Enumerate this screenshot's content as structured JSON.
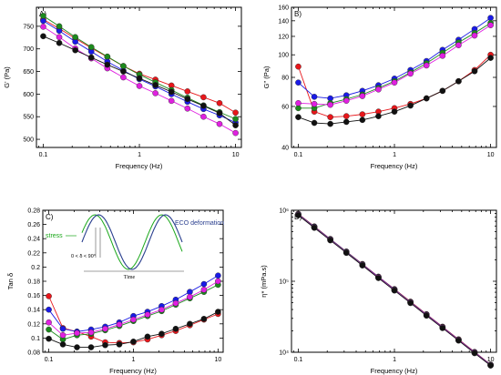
{
  "chart_data": [
    {
      "panel": "A)",
      "type": "line",
      "xscale": "log",
      "xlim": [
        0.085,
        11.5
      ],
      "ylim": [
        482,
        792
      ],
      "xlabel": "Frequency (Hz)",
      "ylabel": "G' (Pa)",
      "xticks": [
        0.1,
        1,
        10
      ],
      "xtick_labels": [
        "0.1",
        "1",
        "10"
      ],
      "yticks": [
        500,
        550,
        600,
        650,
        700,
        750
      ],
      "ytick_labels": [
        "500",
        "550",
        "600",
        "650",
        "700",
        "750"
      ],
      "x": [
        0.1,
        0.1468,
        0.2154,
        0.3162,
        0.4642,
        0.6813,
        1.0,
        1.4678,
        2.1544,
        3.1623,
        4.6416,
        6.8129,
        10.0
      ],
      "series": [
        {
          "color": "#e8161b",
          "values": [
            765,
            745,
            723,
            702,
            682,
            662,
            645,
            632,
            619,
            606,
            593,
            580,
            559
          ]
        },
        {
          "color": "#1a1ae6",
          "values": [
            762,
            740,
            716,
            694,
            672,
            652,
            633,
            617,
            600,
            583,
            567,
            553,
            537
          ]
        },
        {
          "color": "#1d8a1d",
          "values": [
            773,
            750,
            726,
            704,
            683,
            662,
            643,
            626,
            609,
            592,
            575,
            560,
            545
          ]
        },
        {
          "color": "#e020e0",
          "values": [
            749,
            726,
            701,
            679,
            657,
            637,
            618,
            602,
            585,
            568,
            550,
            534,
            514
          ]
        },
        {
          "color": "#111111",
          "values": [
            728,
            713,
            697,
            681,
            665,
            650,
            635,
            620,
            605,
            589,
            574,
            558,
            531
          ]
        }
      ]
    },
    {
      "panel": "B)",
      "type": "line",
      "xscale": "log",
      "yscale": "log",
      "xlim": [
        0.085,
        11.5
      ],
      "ylim": [
        40,
        160
      ],
      "xlabel": "Frequency (Hz)",
      "ylabel": "G\" (Pa)",
      "xticks": [
        0.1,
        1,
        10
      ],
      "xtick_labels": [
        "0.1",
        "1",
        "10"
      ],
      "yticks": [
        40,
        60,
        80,
        100,
        120,
        140,
        160
      ],
      "ytick_labels": [
        "40",
        "60",
        "80",
        "100",
        "120",
        "140",
        "160"
      ],
      "x": [
        0.1,
        0.1468,
        0.2154,
        0.3162,
        0.4642,
        0.6813,
        1.0,
        1.4678,
        2.1544,
        3.1623,
        4.6416,
        6.8129,
        10.0
      ],
      "series": [
        {
          "color": "#e8161b",
          "values": [
            89,
            57,
            54,
            54.5,
            55.5,
            57,
            59,
            61.5,
            65,
            70,
            77,
            86,
            100
          ]
        },
        {
          "color": "#1a1ae6",
          "values": [
            76,
            66,
            65,
            67,
            70,
            74,
            79,
            86,
            94,
            105,
            116,
            129,
            144
          ]
        },
        {
          "color": "#1d8a1d",
          "values": [
            59,
            59,
            62,
            64.5,
            67.5,
            72,
            77,
            84,
            92,
            102,
            113,
            124,
            137
          ]
        },
        {
          "color": "#e020e0",
          "values": [
            62,
            61.5,
            61,
            63.5,
            66.5,
            71,
            76,
            83,
            90,
            99,
            110,
            121,
            134
          ]
        },
        {
          "color": "#111111",
          "values": [
            54,
            51,
            50.5,
            51.5,
            52.5,
            54.5,
            57,
            60.5,
            65,
            70,
            77,
            85,
            97
          ]
        }
      ]
    },
    {
      "panel": "C)",
      "type": "line",
      "xscale": "log",
      "xlim": [
        0.085,
        11.5
      ],
      "ylim": [
        0.08,
        0.28
      ],
      "xlabel": "Frequency (Hz)",
      "ylabel": "Tan δ",
      "xticks": [
        0.1,
        1,
        10
      ],
      "xtick_labels": [
        "0.1",
        "1",
        "10"
      ],
      "yticks": [
        0.08,
        0.1,
        0.12,
        0.14,
        0.16,
        0.18,
        0.2,
        0.22,
        0.24,
        0.26,
        0.28
      ],
      "ytick_labels": [
        "0.08",
        "0.1",
        "0.12",
        "0.14",
        "0.16",
        "0.18",
        "0.2",
        "0.22",
        "0.24",
        "0.26",
        "0.28"
      ],
      "x": [
        0.1,
        0.1468,
        0.2154,
        0.3162,
        0.4642,
        0.6813,
        1.0,
        1.4678,
        2.1544,
        3.1623,
        4.6416,
        6.8129,
        10.0
      ],
      "series": [
        {
          "color": "#e8161b",
          "values": [
            0.159,
            0.114,
            0.109,
            0.102,
            0.094,
            0.093,
            0.094,
            0.098,
            0.104,
            0.11,
            0.118,
            0.126,
            0.134
          ]
        },
        {
          "color": "#1a1ae6",
          "values": [
            0.14,
            0.113,
            0.109,
            0.112,
            0.116,
            0.122,
            0.131,
            0.137,
            0.145,
            0.154,
            0.165,
            0.176,
            0.188
          ]
        },
        {
          "color": "#1d8a1d",
          "values": [
            0.112,
            0.098,
            0.104,
            0.106,
            0.111,
            0.117,
            0.124,
            0.131,
            0.138,
            0.147,
            0.156,
            0.165,
            0.175
          ]
        },
        {
          "color": "#e020e0",
          "values": [
            0.122,
            0.104,
            0.107,
            0.108,
            0.113,
            0.119,
            0.126,
            0.133,
            0.14,
            0.149,
            0.158,
            0.168,
            0.18
          ]
        },
        {
          "color": "#111111",
          "values": [
            0.099,
            0.091,
            0.087,
            0.087,
            0.09,
            0.091,
            0.095,
            0.102,
            0.106,
            0.113,
            0.12,
            0.127,
            0.137
          ]
        }
      ],
      "inset": {
        "stress_label": "stress",
        "eco_label": "ECO deformation",
        "angle_label": "0 < δ < 90°",
        "time_label": "Time"
      }
    },
    {
      "panel": "D)",
      "type": "line",
      "xscale": "log",
      "yscale": "log",
      "xlim": [
        0.085,
        11.5
      ],
      "ylim": [
        10000,
        1000000
      ],
      "xlabel": "Frequency (Hz)",
      "ylabel": "η* (mPa.s)",
      "xticks": [
        0.1,
        1,
        10
      ],
      "xtick_labels": [
        "0.1",
        "1",
        "10"
      ],
      "yticks": [
        10000,
        100000,
        1000000
      ],
      "ytick_labels": [
        "10⁴",
        "10⁵",
        "10⁶"
      ],
      "x": [
        0.1,
        0.1468,
        0.2154,
        0.3162,
        0.4642,
        0.6813,
        1.0,
        1.4678,
        2.1544,
        3.1623,
        4.6416,
        6.8129,
        10.0
      ],
      "series": [
        {
          "color": "#e8161b",
          "values": [
            890000,
            592000,
            394000,
            262000,
            175000,
            116000,
            77500,
            51600,
            34300,
            22900,
            15200,
            10100,
            6700
          ]
        },
        {
          "color": "#1a1ae6",
          "values": [
            880000,
            586000,
            390000,
            260000,
            173000,
            115000,
            76600,
            51000,
            34000,
            22600,
            15000,
            10000,
            6650
          ]
        },
        {
          "color": "#1d8a1d",
          "values": [
            870000,
            580000,
            386000,
            257000,
            171000,
            114000,
            75800,
            50500,
            33600,
            22400,
            14900,
            9900,
            6600
          ]
        },
        {
          "color": "#e020e0",
          "values": [
            860000,
            573000,
            382000,
            254000,
            169000,
            113000,
            75000,
            50000,
            33300,
            22200,
            14800,
            9850,
            6550
          ]
        },
        {
          "color": "#111111",
          "values": [
            850000,
            566000,
            377000,
            251000,
            167000,
            111000,
            74000,
            49300,
            32800,
            21900,
            14600,
            9700,
            6500
          ]
        }
      ]
    }
  ]
}
